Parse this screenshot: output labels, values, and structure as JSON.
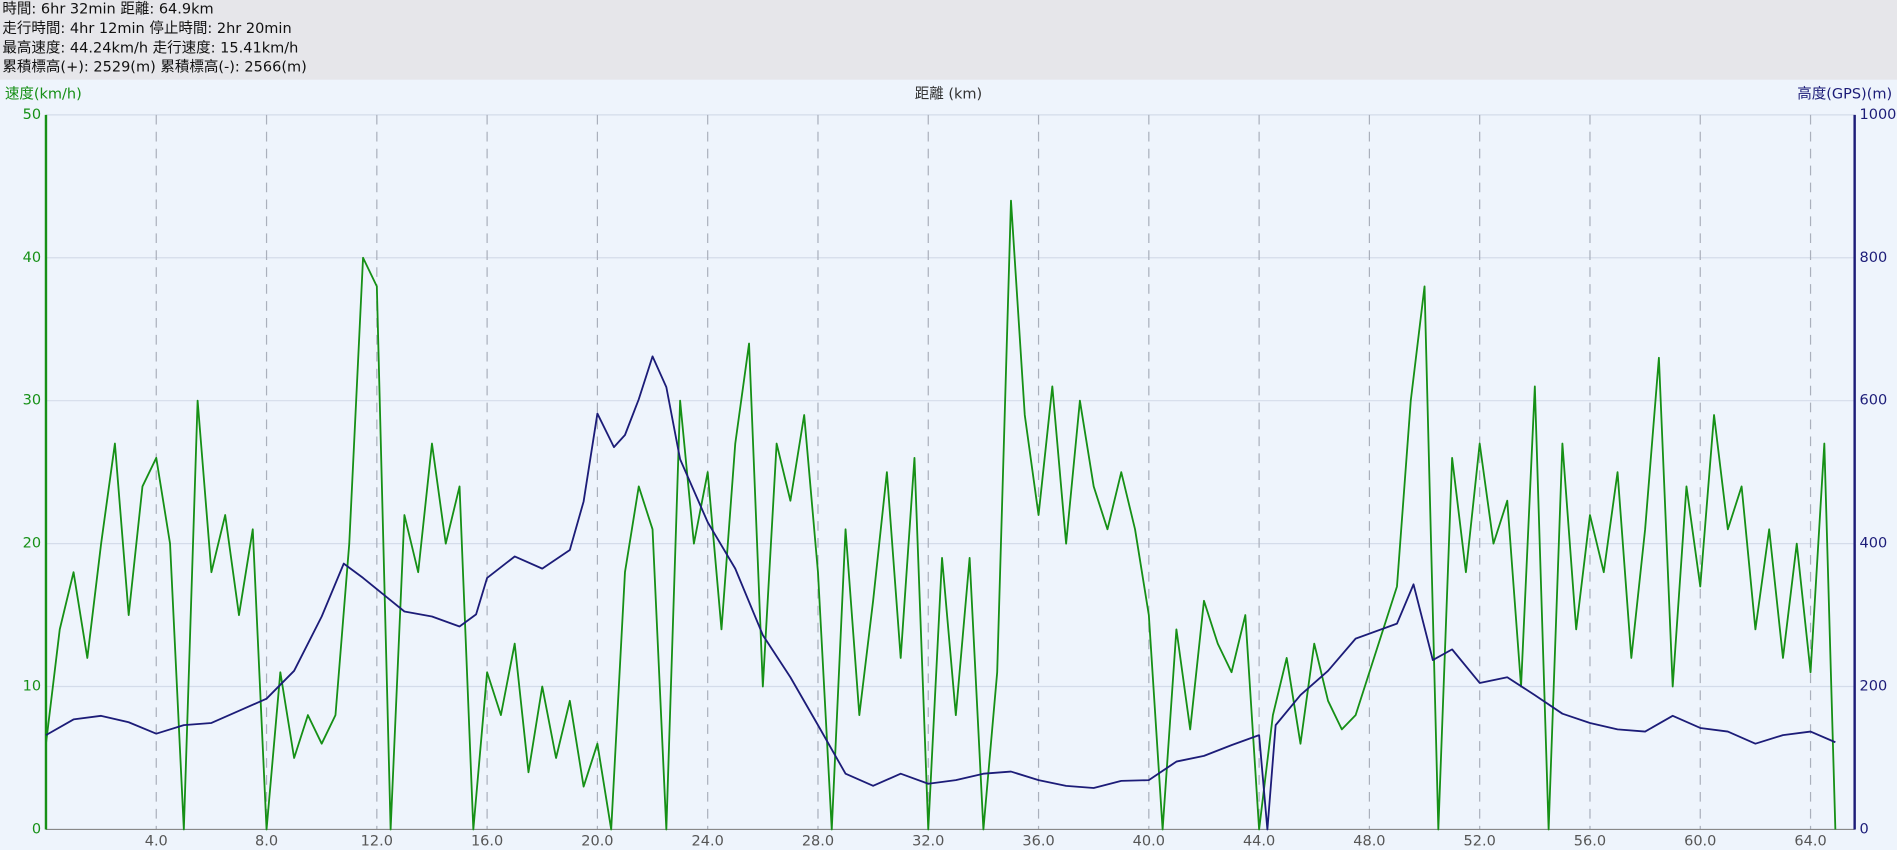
{
  "header": {
    "lines": [
      "時間: 6hr 32min 距離: 64.9km",
      "走行時間: 4hr 12min 停止時間: 2hr 20min",
      "最高速度: 44.24km/h 走行速度: 15.41km/h",
      "累積標高(+): 2529(m) 累積標高(-): 2566(m)"
    ]
  },
  "chart_data": {
    "type": "line",
    "y_label": "速度(km/h)",
    "x_label": "距離 (km)",
    "y2_label": "高度(GPS)(m)",
    "xlim": [
      0,
      65.6
    ],
    "xticks": [
      {
        "value": 4,
        "label": "4.0"
      },
      {
        "value": 8,
        "label": "8.0"
      },
      {
        "value": 12,
        "label": "12.0"
      },
      {
        "value": 16,
        "label": "16.0"
      },
      {
        "value": 20,
        "label": "20.0"
      },
      {
        "value": 24,
        "label": "24.0"
      },
      {
        "value": 28,
        "label": "28.0"
      },
      {
        "value": 32,
        "label": "32.0"
      },
      {
        "value": 36,
        "label": "36.0"
      },
      {
        "value": 40,
        "label": "40.0"
      },
      {
        "value": 44,
        "label": "44.0"
      },
      {
        "value": 48,
        "label": "48.0"
      },
      {
        "value": 52,
        "label": "52.0"
      },
      {
        "value": 56,
        "label": "56.0"
      },
      {
        "value": 60,
        "label": "60.0"
      },
      {
        "value": 64,
        "label": "64.0"
      }
    ],
    "ylim": [
      0,
      50
    ],
    "yticks": [
      0,
      10,
      20,
      30,
      40,
      50
    ],
    "y2lim": [
      0,
      1000
    ],
    "y2ticks": [
      0,
      200,
      400,
      600,
      800,
      1000
    ],
    "grid": true,
    "series": [
      {
        "name": "速度",
        "color": "#169016",
        "axis": "y",
        "x": [
          0,
          0.5,
          1,
          1.5,
          2,
          2.5,
          3,
          3.5,
          4,
          4.5,
          5,
          5.5,
          6,
          6.5,
          7,
          7.5,
          8,
          8.5,
          9,
          9.5,
          10,
          10.5,
          11,
          11.5,
          12,
          12.5,
          13,
          13.5,
          14,
          14.5,
          15,
          15.5,
          16,
          16.5,
          17,
          17.5,
          18,
          18.5,
          19,
          19.5,
          20,
          20.5,
          21,
          21.5,
          22,
          22.5,
          23,
          23.5,
          24,
          24.5,
          25,
          25.5,
          26,
          26.5,
          27,
          27.5,
          28,
          28.5,
          29,
          29.5,
          30,
          30.5,
          31,
          31.5,
          32,
          32.5,
          33,
          33.5,
          34,
          34.5,
          35,
          35.5,
          36,
          36.5,
          37,
          37.5,
          38,
          38.5,
          39,
          39.5,
          40,
          40.5,
          41,
          41.5,
          42,
          42.5,
          43,
          43.5,
          44,
          44.5,
          45,
          45.5,
          46,
          46.5,
          47,
          47.5,
          48,
          48.5,
          49,
          49.5,
          50,
          50.5,
          51,
          51.5,
          52,
          52.5,
          53,
          53.5,
          54,
          54.5,
          55,
          55.5,
          56,
          56.5,
          57,
          57.5,
          58,
          58.5,
          59,
          59.5,
          60,
          60.5,
          61,
          61.5,
          62,
          62.5,
          63,
          63.5,
          64,
          64.5,
          64.9
        ],
        "values": [
          6,
          14,
          18,
          12,
          20,
          27,
          15,
          24,
          26,
          20,
          0,
          30,
          18,
          22,
          15,
          21,
          0,
          11,
          5,
          8,
          6,
          8,
          20,
          40,
          38,
          0,
          22,
          18,
          27,
          20,
          24,
          0,
          11,
          8,
          13,
          4,
          10,
          5,
          9,
          3,
          6,
          0,
          18,
          24,
          21,
          0,
          30,
          20,
          25,
          14,
          27,
          34,
          10,
          27,
          23,
          29,
          18,
          0,
          21,
          8,
          16,
          25,
          12,
          26,
          0,
          19,
          8,
          19,
          0,
          11,
          44,
          29,
          22,
          31,
          20,
          30,
          24,
          21,
          25,
          21,
          15,
          0,
          14,
          7,
          16,
          13,
          11,
          15,
          0,
          8,
          12,
          6,
          13,
          9,
          7,
          8,
          11,
          14,
          17,
          30,
          38,
          0,
          26,
          18,
          27,
          20,
          23,
          10,
          31,
          0,
          27,
          14,
          22,
          18,
          25,
          12,
          21,
          33,
          10,
          24,
          17,
          29,
          21,
          24,
          14,
          21,
          12,
          20,
          11,
          27,
          0
        ]
      },
      {
        "name": "高度",
        "color": "#1c1c78",
        "axis": "y2",
        "x": [
          0,
          1,
          2,
          3,
          4,
          5,
          6,
          7,
          8,
          9,
          10,
          10.8,
          11.5,
          13,
          14,
          15,
          15.6,
          16,
          17,
          18,
          19,
          19.5,
          20,
          20.6,
          21,
          21.5,
          22,
          22.5,
          23,
          24,
          25,
          26,
          27,
          28,
          29,
          30,
          31,
          32,
          33,
          34,
          35,
          36,
          37,
          38,
          39,
          40,
          41,
          42,
          43,
          44,
          44.3,
          44.6,
          45.5,
          46.5,
          47.5,
          49,
          49.6,
          50.3,
          51,
          52,
          53,
          54,
          55,
          56,
          57,
          58,
          59,
          60,
          61,
          62,
          63,
          64,
          64.9
        ],
        "values": [
          132,
          154,
          159,
          150,
          134,
          146,
          149,
          166,
          183,
          222,
          298,
          372,
          352,
          305,
          298,
          284,
          301,
          352,
          382,
          365,
          391,
          459,
          582,
          535,
          552,
          602,
          662,
          619,
          518,
          430,
          365,
          272,
          213,
          146,
          78,
          61,
          78,
          64,
          69,
          78,
          81,
          69,
          61,
          58,
          68,
          69,
          95,
          103,
          118,
          132,
          0,
          146,
          188,
          222,
          267,
          288,
          343,
          237,
          252,
          205,
          213,
          188,
          162,
          149,
          140,
          137,
          159,
          142,
          137,
          120,
          132,
          137,
          122
        ]
      }
    ]
  }
}
